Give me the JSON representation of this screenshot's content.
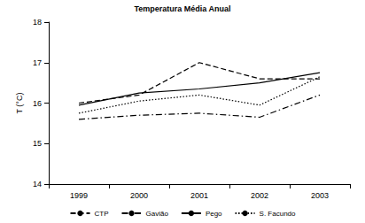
{
  "chart_data": {
    "type": "line",
    "title": "Temperatura Média Anual",
    "y_label": "T (°C)",
    "categories": [
      "1999",
      "2000",
      "2001",
      "2002",
      "2003"
    ],
    "series": [
      {
        "name": "CTP",
        "color": "#000000",
        "line_style": "dashed",
        "values": [
          16.0,
          16.2,
          17.0,
          16.6,
          16.6
        ]
      },
      {
        "name": "Gavião",
        "color": "#000000",
        "line_style": "dashdot",
        "values": [
          15.6,
          15.7,
          15.75,
          15.65,
          16.2
        ]
      },
      {
        "name": "Pego",
        "color": "#000000",
        "line_style": "solid",
        "values": [
          15.95,
          16.25,
          16.35,
          16.5,
          16.75
        ]
      },
      {
        "name": "S. Facundo",
        "color": "#000000",
        "line_style": "dotted",
        "values": [
          15.75,
          16.05,
          16.2,
          15.95,
          16.65
        ]
      }
    ],
    "ylim": [
      14,
      18
    ],
    "yticks": [
      14,
      15,
      16,
      17,
      18
    ],
    "grid": false,
    "legend": "bottom"
  }
}
